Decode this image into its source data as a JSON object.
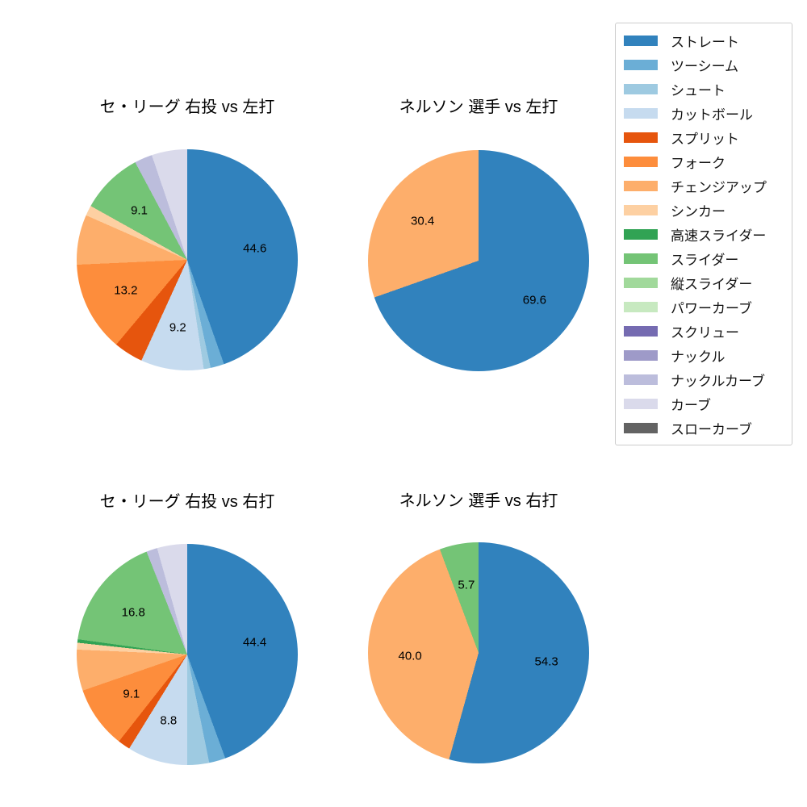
{
  "background_color": "#ffffff",
  "legend": {
    "items": [
      {
        "label": "ストレート",
        "color": "#3182bd"
      },
      {
        "label": "ツーシーム",
        "color": "#6baed6"
      },
      {
        "label": "シュート",
        "color": "#9ecae1"
      },
      {
        "label": "カットボール",
        "color": "#c6dbef"
      },
      {
        "label": "スプリット",
        "color": "#e6550d"
      },
      {
        "label": "フォーク",
        "color": "#fd8d3c"
      },
      {
        "label": "チェンジアップ",
        "color": "#fdae6b"
      },
      {
        "label": "シンカー",
        "color": "#fdd0a2"
      },
      {
        "label": "高速スライダー",
        "color": "#31a354"
      },
      {
        "label": "スライダー",
        "color": "#74c476"
      },
      {
        "label": "縦スライダー",
        "color": "#a1d99b"
      },
      {
        "label": "パワーカーブ",
        "color": "#c7e9c0"
      },
      {
        "label": "スクリュー",
        "color": "#756bb1"
      },
      {
        "label": "ナックル",
        "color": "#9e9ac8"
      },
      {
        "label": "ナックルカーブ",
        "color": "#bcbddc"
      },
      {
        "label": "カーブ",
        "color": "#dadaeb"
      },
      {
        "label": "スローカーブ",
        "color": "#636363"
      }
    ]
  },
  "chart_data": [
    {
      "type": "pie",
      "title": "セ・リーグ 右投 vs 左打",
      "position": "top-left",
      "start_angle": "12-oclock",
      "direction": "clockwise",
      "pct_label_distance": 0.62,
      "slices": [
        {
          "label": "ストレート",
          "value": 44.6,
          "pct_label": "44.6"
        },
        {
          "label": "ツーシーム",
          "value": 2.0,
          "pct_label": null
        },
        {
          "label": "シュート",
          "value": 1.0,
          "pct_label": null
        },
        {
          "label": "カットボール",
          "value": 9.2,
          "pct_label": "9.2"
        },
        {
          "label": "スプリット",
          "value": 4.3,
          "pct_label": null
        },
        {
          "label": "フォーク",
          "value": 13.2,
          "pct_label": "13.2"
        },
        {
          "label": "チェンジアップ",
          "value": 7.3,
          "pct_label": null
        },
        {
          "label": "シンカー",
          "value": 1.5,
          "pct_label": null
        },
        {
          "label": "スライダー",
          "value": 9.1,
          "pct_label": "9.1"
        },
        {
          "label": "ナックルカーブ",
          "value": 2.6,
          "pct_label": null
        },
        {
          "label": "カーブ",
          "value": 5.2,
          "pct_label": null
        }
      ]
    },
    {
      "type": "pie",
      "title": "ネルソン 選手 vs 左打",
      "position": "top-right",
      "start_angle": "12-oclock",
      "direction": "clockwise",
      "pct_label_distance": 0.62,
      "slices": [
        {
          "label": "ストレート",
          "value": 69.6,
          "pct_label": "69.6"
        },
        {
          "label": "チェンジアップ",
          "value": 30.4,
          "pct_label": "30.4"
        }
      ]
    },
    {
      "type": "pie",
      "title": "セ・リーグ 右投 vs 右打",
      "position": "bottom-left",
      "start_angle": "12-oclock",
      "direction": "clockwise",
      "pct_label_distance": 0.62,
      "slices": [
        {
          "label": "ストレート",
          "value": 44.4,
          "pct_label": "44.4"
        },
        {
          "label": "ツーシーム",
          "value": 2.4,
          "pct_label": null
        },
        {
          "label": "シュート",
          "value": 3.2,
          "pct_label": null
        },
        {
          "label": "カットボール",
          "value": 8.8,
          "pct_label": "8.8"
        },
        {
          "label": "スプリット",
          "value": 1.8,
          "pct_label": null
        },
        {
          "label": "フォーク",
          "value": 9.1,
          "pct_label": "9.1"
        },
        {
          "label": "チェンジアップ",
          "value": 6.0,
          "pct_label": null
        },
        {
          "label": "シンカー",
          "value": 1.0,
          "pct_label": null
        },
        {
          "label": "高速スライダー",
          "value": 0.5,
          "pct_label": null
        },
        {
          "label": "スライダー",
          "value": 16.8,
          "pct_label": "16.8"
        },
        {
          "label": "ナックルカーブ",
          "value": 1.6,
          "pct_label": null
        },
        {
          "label": "カーブ",
          "value": 4.4,
          "pct_label": null
        }
      ]
    },
    {
      "type": "pie",
      "title": "ネルソン 選手 vs 右打",
      "position": "bottom-right",
      "start_angle": "12-oclock",
      "direction": "clockwise",
      "pct_label_distance": 0.62,
      "slices": [
        {
          "label": "ストレート",
          "value": 54.3,
          "pct_label": "54.3"
        },
        {
          "label": "チェンジアップ",
          "value": 40.0,
          "pct_label": "40.0"
        },
        {
          "label": "スライダー",
          "value": 5.7,
          "pct_label": "5.7"
        }
      ]
    }
  ]
}
